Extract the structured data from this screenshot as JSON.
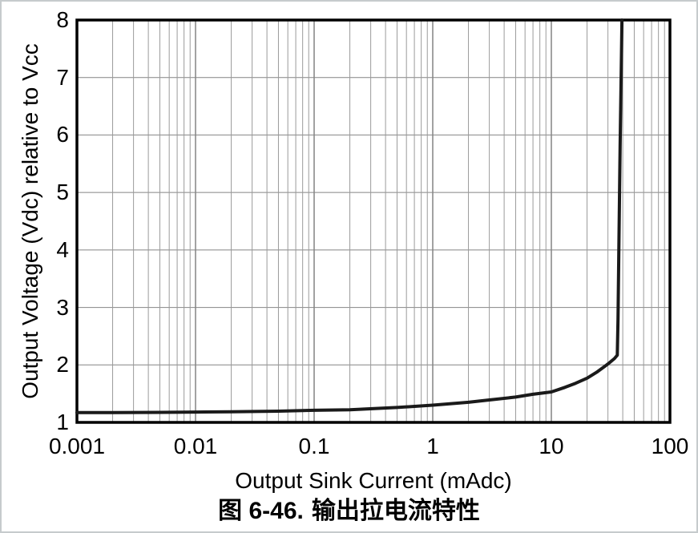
{
  "page": {
    "background": "#ffffff",
    "border_color": "#c6cbcd",
    "text_color": "#000000"
  },
  "caption": {
    "figure_label": "图 6-46.",
    "title_text": "输出拉电流特性"
  },
  "chart_data": {
    "type": "line",
    "title": "图 6-46. 输出拉电流特性",
    "xlabel": "Output Sink Current (mAdc)",
    "ylabel": "Output Voltage (Vdc) relative to Vcc",
    "x_scale": "log",
    "y_scale": "linear",
    "xlim": [
      0.001,
      100
    ],
    "ylim": [
      1,
      8
    ],
    "x_ticks": {
      "values": [
        0.001,
        0.01,
        0.1,
        1,
        10,
        100
      ],
      "labels": [
        "0.001",
        "0.01",
        "0.1",
        "1",
        "10",
        "100"
      ]
    },
    "y_ticks": {
      "values": [
        1,
        2,
        3,
        4,
        5,
        6,
        7,
        8
      ],
      "labels": [
        "1",
        "2",
        "3",
        "4",
        "5",
        "6",
        "7",
        "8"
      ]
    },
    "grid": {
      "vertical": "log decades with 2-9 minors",
      "horizontal": "integer majors only",
      "minor_color": "#9a9a9a",
      "major_color": "#848484"
    },
    "frame_color": "#000000",
    "legend": "none",
    "series": [
      {
        "name": "output-voltage-vs-sink-current",
        "color": "#1a1a1a",
        "points": [
          [
            0.001,
            1.17
          ],
          [
            0.002,
            1.17
          ],
          [
            0.005,
            1.175
          ],
          [
            0.01,
            1.18
          ],
          [
            0.02,
            1.185
          ],
          [
            0.05,
            1.195
          ],
          [
            0.1,
            1.21
          ],
          [
            0.2,
            1.22
          ],
          [
            0.5,
            1.26
          ],
          [
            1,
            1.3
          ],
          [
            2,
            1.35
          ],
          [
            3,
            1.39
          ],
          [
            5,
            1.44
          ],
          [
            7,
            1.49
          ],
          [
            10,
            1.53
          ],
          [
            13,
            1.61
          ],
          [
            16,
            1.68
          ],
          [
            20,
            1.77
          ],
          [
            24,
            1.87
          ],
          [
            28,
            1.97
          ],
          [
            31,
            2.04
          ],
          [
            34,
            2.11
          ],
          [
            36,
            2.17
          ],
          [
            36.5,
            2.8
          ],
          [
            37.2,
            4.2
          ],
          [
            38,
            5.8
          ],
          [
            39,
            7.4
          ],
          [
            39.4,
            8.0
          ]
        ]
      }
    ]
  }
}
